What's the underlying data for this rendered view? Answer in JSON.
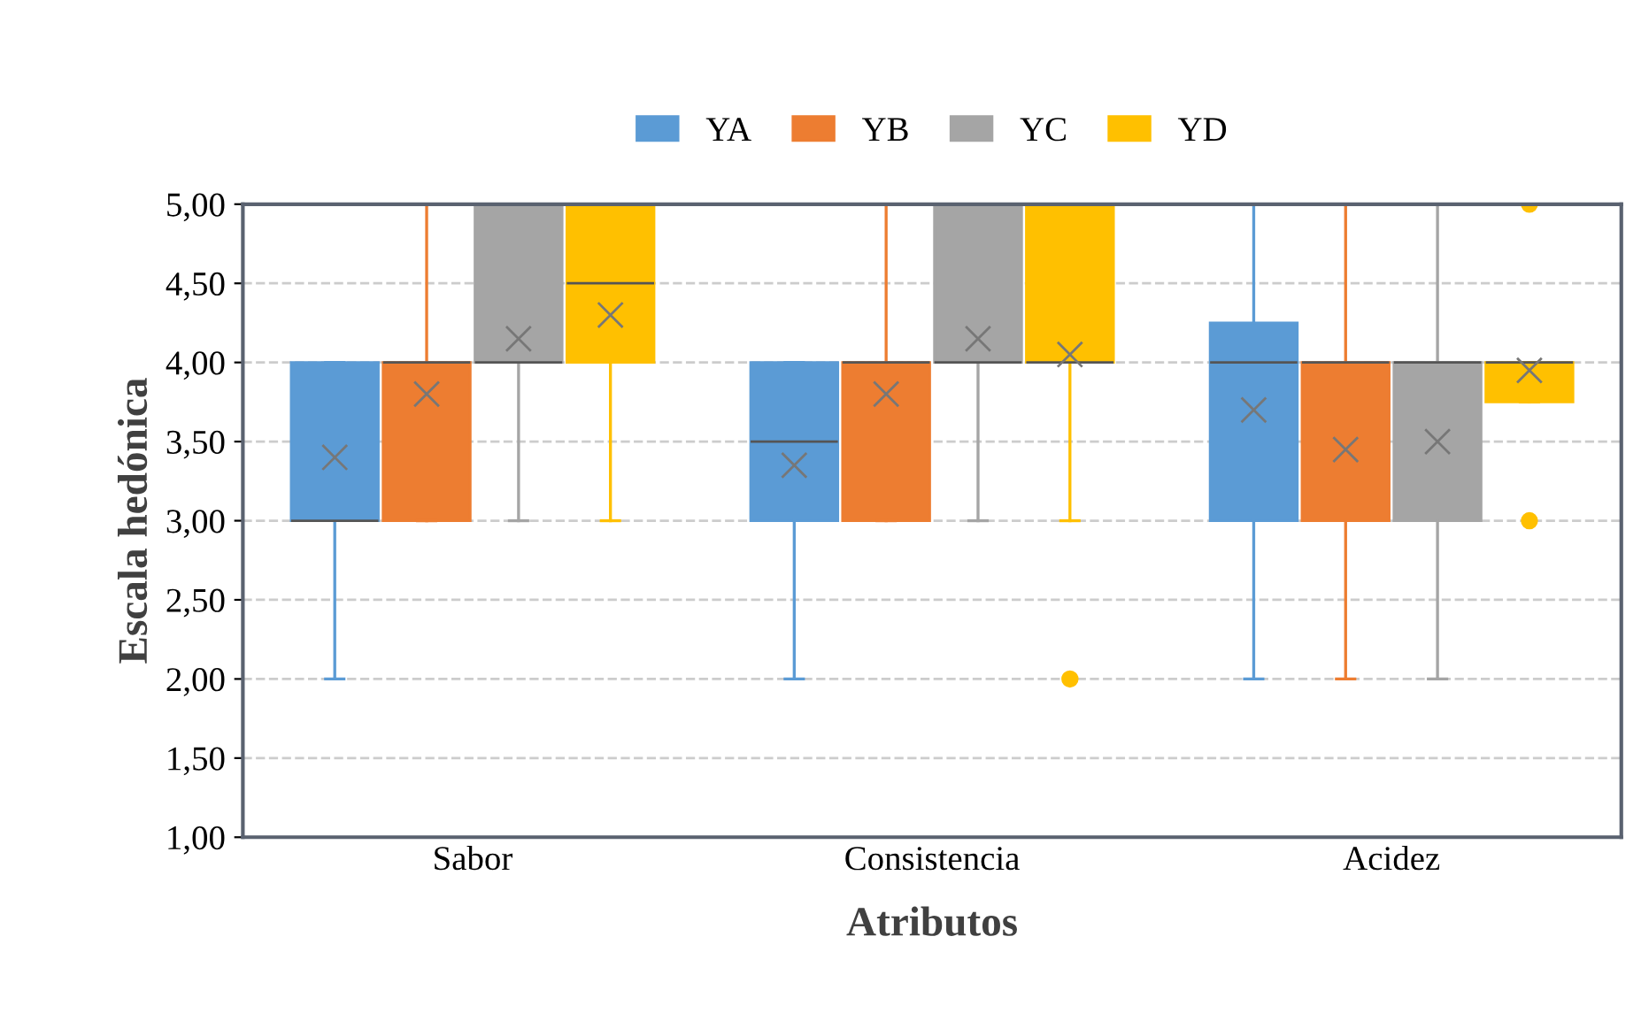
{
  "chart_data": {
    "type": "box",
    "ylabel": "Escala hedónica",
    "xlabel": "Atributos",
    "categories": [
      "Sabor",
      "Consistencia",
      "Acidez"
    ],
    "ylim": [
      1,
      5
    ],
    "yticks": [
      {
        "value": 1,
        "label": "1,00"
      },
      {
        "value": 1.5,
        "label": "1,50"
      },
      {
        "value": 2,
        "label": "2,00"
      },
      {
        "value": 2.5,
        "label": "2,50"
      },
      {
        "value": 3,
        "label": "3,00"
      },
      {
        "value": 3.5,
        "label": "3,50"
      },
      {
        "value": 4,
        "label": "4,00"
      },
      {
        "value": 4.5,
        "label": "4,50"
      },
      {
        "value": 5,
        "label": "5,00"
      }
    ],
    "grid": "y",
    "legend": "top",
    "series": [
      {
        "name": "YA",
        "color": "#5b9bd5",
        "boxes": [
          {
            "low": 2,
            "q1": 3,
            "median": 3,
            "q3": 4,
            "high": 4,
            "mean": 3.4
          },
          {
            "low": 2,
            "q1": 3,
            "median": 3.5,
            "q3": 4,
            "high": 4,
            "mean": 3.35
          },
          {
            "low": 2,
            "q1": 3,
            "median": 4,
            "q3": 4.25,
            "high": 5,
            "mean": 3.7
          }
        ]
      },
      {
        "name": "YB",
        "color": "#ed7d31",
        "boxes": [
          {
            "low": 3,
            "q1": 3,
            "median": 4,
            "q3": 4,
            "high": 5,
            "mean": 3.8
          },
          {
            "low": 3,
            "q1": 3,
            "median": 4,
            "q3": 4,
            "high": 5,
            "mean": 3.8
          },
          {
            "low": 2,
            "q1": 3,
            "median": 4,
            "q3": 4,
            "high": 5,
            "mean": 3.45
          }
        ]
      },
      {
        "name": "YC",
        "color": "#a5a5a5",
        "boxes": [
          {
            "low": 3,
            "q1": 4,
            "median": 4,
            "q3": 5,
            "high": 5,
            "mean": 4.15
          },
          {
            "low": 3,
            "q1": 4,
            "median": 4,
            "q3": 5,
            "high": 5,
            "mean": 4.15
          },
          {
            "low": 2,
            "q1": 3,
            "median": 4,
            "q3": 4,
            "high": 5,
            "mean": 3.5
          }
        ]
      },
      {
        "name": "YD",
        "color": "#ffc000",
        "boxes": [
          {
            "low": 3,
            "q1": 4,
            "median": 4.5,
            "q3": 5,
            "high": 5,
            "mean": 4.3
          },
          {
            "low": 3,
            "q1": 4,
            "median": 4,
            "q3": 5,
            "high": 5,
            "mean": 4.05,
            "outliers": [
              2
            ]
          },
          {
            "low": 3.75,
            "q1": 3.75,
            "median": 4,
            "q3": 4,
            "high": 4,
            "mean": 3.95,
            "outliers": [
              5,
              3
            ]
          }
        ]
      }
    ]
  }
}
